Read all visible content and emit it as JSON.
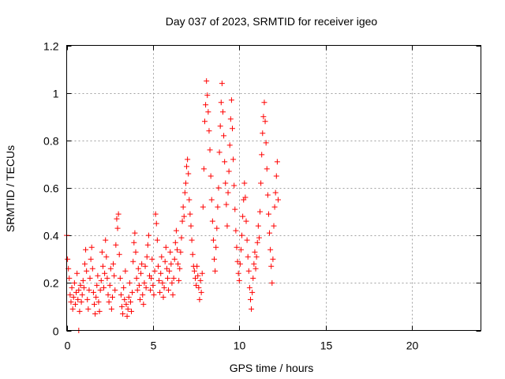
{
  "chart_data": {
    "type": "scatter",
    "title": "Day 037 of 2023, SRMTID for receiver igeo",
    "xlabel": "GPS time / hours",
    "ylabel": "SRMTID / TECUs",
    "xlim": [
      0,
      24
    ],
    "ylim": [
      0,
      1.2
    ],
    "xticks": [
      0,
      5,
      10,
      15,
      20
    ],
    "xtick_labels": [
      "0",
      "5",
      "10",
      "15",
      "20"
    ],
    "yticks": [
      0,
      0.2,
      0.4,
      0.6,
      0.8,
      1,
      1.2
    ],
    "ytick_labels": [
      "0",
      "0.2",
      "0.4",
      "0.6",
      "0.8",
      "1",
      "1.2"
    ],
    "grid": true,
    "marker": "+",
    "marker_color": "#ff0000",
    "series": [
      {
        "name": "SRMTID",
        "points": [
          [
            0.0,
            0.4
          ],
          [
            0.05,
            0.3
          ],
          [
            0.1,
            0.26
          ],
          [
            0.15,
            0.22
          ],
          [
            0.2,
            0.15
          ],
          [
            0.25,
            0.12
          ],
          [
            0.3,
            0.18
          ],
          [
            0.35,
            0.09
          ],
          [
            0.4,
            0.14
          ],
          [
            0.45,
            0.2
          ],
          [
            0.5,
            0.11
          ],
          [
            0.55,
            0.16
          ],
          [
            0.6,
            0.24
          ],
          [
            0.65,
            0.13
          ],
          [
            0.7,
            0.17
          ],
          [
            0.75,
            0.08
          ],
          [
            0.8,
            0.19
          ],
          [
            0.85,
            0.12
          ],
          [
            0.9,
            0.15
          ],
          [
            0.95,
            0.21
          ],
          [
            1.0,
            0.18
          ],
          [
            1.05,
            0.28
          ],
          [
            1.1,
            0.34
          ],
          [
            1.15,
            0.25
          ],
          [
            1.2,
            0.13
          ],
          [
            1.25,
            0.09
          ],
          [
            1.3,
            0.17
          ],
          [
            1.35,
            0.22
          ],
          [
            1.4,
            0.3
          ],
          [
            1.45,
            0.35
          ],
          [
            1.5,
            0.26
          ],
          [
            1.55,
            0.16
          ],
          [
            1.6,
            0.11
          ],
          [
            1.65,
            0.07
          ],
          [
            1.7,
            0.14
          ],
          [
            1.75,
            0.19
          ],
          [
            1.8,
            0.23
          ],
          [
            1.85,
            0.12
          ],
          [
            1.9,
            0.08
          ],
          [
            1.95,
            0.17
          ],
          [
            2.0,
            0.21
          ],
          [
            2.05,
            0.33
          ],
          [
            2.1,
            0.27
          ],
          [
            2.15,
            0.18
          ],
          [
            2.2,
            0.24
          ],
          [
            2.25,
            0.38
          ],
          [
            2.3,
            0.31
          ],
          [
            2.35,
            0.22
          ],
          [
            2.4,
            0.15
          ],
          [
            2.45,
            0.12
          ],
          [
            2.5,
            0.19
          ],
          [
            2.55,
            0.26
          ],
          [
            2.6,
            0.09
          ],
          [
            2.65,
            0.14
          ],
          [
            2.7,
            0.28
          ],
          [
            2.75,
            0.23
          ],
          [
            2.8,
            0.17
          ],
          [
            2.85,
            0.36
          ],
          [
            2.9,
            0.47
          ],
          [
            2.95,
            0.43
          ],
          [
            3.0,
            0.49
          ],
          [
            3.05,
            0.32
          ],
          [
            3.1,
            0.22
          ],
          [
            3.15,
            0.15
          ],
          [
            3.2,
            0.1
          ],
          [
            3.25,
            0.07
          ],
          [
            3.3,
            0.18
          ],
          [
            3.35,
            0.13
          ],
          [
            3.4,
            0.25
          ],
          [
            3.45,
            0.11
          ],
          [
            3.5,
            0.06
          ],
          [
            3.55,
            0.09
          ],
          [
            3.6,
            0.14
          ],
          [
            3.65,
            0.2
          ],
          [
            3.7,
            0.12
          ],
          [
            3.75,
            0.08
          ],
          [
            3.8,
            0.16
          ],
          [
            3.85,
            0.29
          ],
          [
            3.9,
            0.37
          ],
          [
            3.95,
            0.41
          ],
          [
            4.0,
            0.33
          ],
          [
            4.05,
            0.22
          ],
          [
            4.1,
            0.17
          ],
          [
            4.15,
            0.26
          ],
          [
            4.2,
            0.19
          ],
          [
            4.25,
            0.13
          ],
          [
            4.3,
            0.24
          ],
          [
            4.35,
            0.28
          ],
          [
            4.4,
            0.15
          ],
          [
            4.45,
            0.11
          ],
          [
            4.5,
            0.2
          ],
          [
            4.55,
            0.27
          ],
          [
            4.6,
            0.18
          ],
          [
            4.65,
            0.31
          ],
          [
            4.7,
            0.36
          ],
          [
            4.75,
            0.4
          ],
          [
            4.8,
            0.23
          ],
          [
            4.85,
            0.17
          ],
          [
            4.9,
            0.22
          ],
          [
            4.95,
            0.3
          ],
          [
            5.0,
            0.19
          ],
          [
            5.05,
            0.15
          ],
          [
            5.1,
            0.25
          ],
          [
            5.15,
            0.49
          ],
          [
            5.2,
            0.45
          ],
          [
            5.25,
            0.38
          ],
          [
            5.3,
            0.27
          ],
          [
            5.35,
            0.21
          ],
          [
            5.4,
            0.16
          ],
          [
            5.45,
            0.24
          ],
          [
            5.5,
            0.31
          ],
          [
            5.55,
            0.2
          ],
          [
            5.6,
            0.14
          ],
          [
            5.65,
            0.18
          ],
          [
            5.7,
            0.29
          ],
          [
            5.75,
            0.35
          ],
          [
            5.8,
            0.26
          ],
          [
            5.85,
            0.22
          ],
          [
            5.9,
            0.17
          ],
          [
            5.95,
            0.25
          ],
          [
            6.0,
            0.33
          ],
          [
            6.05,
            0.28
          ],
          [
            6.1,
            0.2
          ],
          [
            6.15,
            0.15
          ],
          [
            6.2,
            0.22
          ],
          [
            6.25,
            0.3
          ],
          [
            6.3,
            0.37
          ],
          [
            6.35,
            0.42
          ],
          [
            6.4,
            0.34
          ],
          [
            6.45,
            0.28
          ],
          [
            6.5,
            0.21
          ],
          [
            6.55,
            0.26
          ],
          [
            6.6,
            0.33
          ],
          [
            6.65,
            0.39
          ],
          [
            6.7,
            0.46
          ],
          [
            6.75,
            0.52
          ],
          [
            6.8,
            0.48
          ],
          [
            6.85,
            0.58
          ],
          [
            6.9,
            0.62
          ],
          [
            6.95,
            0.69
          ],
          [
            7.0,
            0.72
          ],
          [
            7.05,
            0.66
          ],
          [
            7.1,
            0.55
          ],
          [
            7.15,
            0.49
          ],
          [
            7.2,
            0.44
          ],
          [
            7.25,
            0.38
          ],
          [
            7.3,
            0.32
          ],
          [
            7.35,
            0.27
          ],
          [
            7.4,
            0.25
          ],
          [
            7.45,
            0.22
          ],
          [
            7.5,
            0.19
          ],
          [
            7.55,
            0.27
          ],
          [
            7.6,
            0.23
          ],
          [
            7.65,
            0.18
          ],
          [
            7.7,
            0.13
          ],
          [
            7.75,
            0.21
          ],
          [
            7.8,
            0.16
          ],
          [
            7.85,
            0.24
          ],
          [
            7.9,
            0.52
          ],
          [
            7.95,
            0.68
          ],
          [
            8.0,
            0.88
          ],
          [
            8.05,
            0.95
          ],
          [
            8.1,
            1.05
          ],
          [
            8.15,
            0.99
          ],
          [
            8.2,
            0.92
          ],
          [
            8.25,
            0.84
          ],
          [
            8.3,
            0.76
          ],
          [
            8.35,
            0.65
          ],
          [
            8.4,
            0.55
          ],
          [
            8.45,
            0.46
          ],
          [
            8.5,
            0.38
          ],
          [
            8.55,
            0.3
          ],
          [
            8.6,
            0.25
          ],
          [
            8.65,
            0.35
          ],
          [
            8.7,
            0.43
          ],
          [
            8.75,
            0.52
          ],
          [
            8.8,
            0.6
          ],
          [
            8.85,
            0.75
          ],
          [
            8.9,
            0.86
          ],
          [
            8.95,
            0.96
          ],
          [
            9.0,
            1.04
          ],
          [
            9.05,
            0.92
          ],
          [
            9.1,
            0.82
          ],
          [
            9.15,
            0.71
          ],
          [
            9.2,
            0.62
          ],
          [
            9.25,
            0.53
          ],
          [
            9.3,
            0.44
          ],
          [
            9.35,
            0.58
          ],
          [
            9.4,
            0.67
          ],
          [
            9.45,
            0.78
          ],
          [
            9.5,
            0.89
          ],
          [
            9.55,
            0.97
          ],
          [
            9.6,
            0.85
          ],
          [
            9.65,
            0.72
          ],
          [
            9.7,
            0.61
          ],
          [
            9.75,
            0.51
          ],
          [
            9.8,
            0.42
          ],
          [
            9.85,
            0.35
          ],
          [
            9.9,
            0.29
          ],
          [
            9.95,
            0.24
          ],
          [
            10.0,
            0.21
          ],
          [
            10.05,
            0.28
          ],
          [
            10.1,
            0.34
          ],
          [
            10.15,
            0.4
          ],
          [
            10.2,
            0.48
          ],
          [
            10.25,
            0.55
          ],
          [
            10.3,
            0.62
          ],
          [
            10.35,
            0.56
          ],
          [
            10.4,
            0.46
          ],
          [
            10.45,
            0.38
          ],
          [
            10.5,
            0.31
          ],
          [
            10.55,
            0.25
          ],
          [
            10.6,
            0.18
          ],
          [
            10.65,
            0.13
          ],
          [
            10.7,
            0.09
          ],
          [
            10.75,
            0.16
          ],
          [
            10.8,
            0.22
          ],
          [
            10.85,
            0.28
          ],
          [
            10.9,
            0.33
          ],
          [
            10.95,
            0.26
          ],
          [
            11.0,
            0.31
          ],
          [
            11.05,
            0.37
          ],
          [
            11.1,
            0.44
          ],
          [
            11.15,
            0.39
          ],
          [
            11.2,
            0.5
          ],
          [
            11.25,
            0.62
          ],
          [
            11.3,
            0.74
          ],
          [
            11.35,
            0.83
          ],
          [
            11.4,
            0.9
          ],
          [
            11.45,
            0.96
          ],
          [
            11.5,
            0.88
          ],
          [
            11.55,
            0.79
          ],
          [
            11.6,
            0.68
          ],
          [
            11.65,
            0.57
          ],
          [
            11.7,
            0.49
          ],
          [
            11.75,
            0.41
          ],
          [
            11.8,
            0.34
          ],
          [
            11.85,
            0.27
          ],
          [
            11.9,
            0.2
          ],
          [
            11.95,
            0.3
          ],
          [
            12.0,
            0.44
          ],
          [
            12.05,
            0.52
          ],
          [
            12.1,
            0.58
          ],
          [
            12.15,
            0.65
          ],
          [
            12.2,
            0.71
          ],
          [
            12.25,
            0.55
          ],
          [
            0.7,
            0.0
          ]
        ]
      }
    ]
  }
}
